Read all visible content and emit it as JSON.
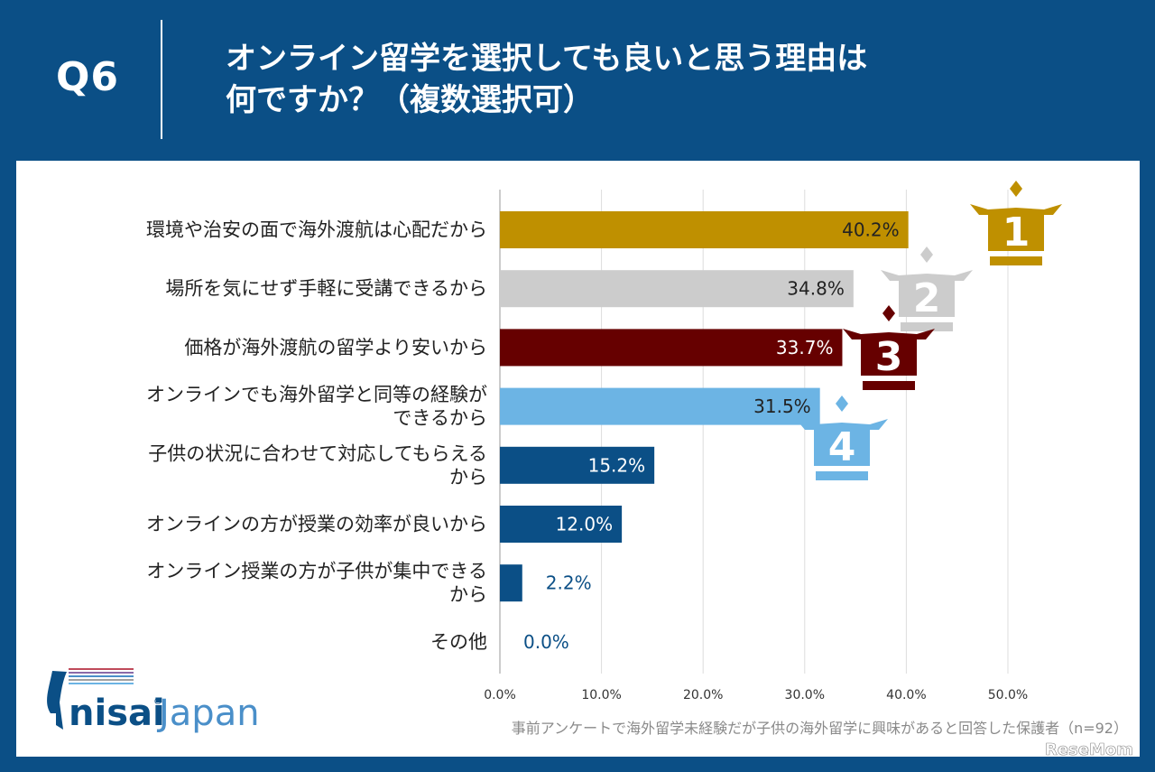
{
  "header": {
    "question_number": "Q6",
    "title_line1": "オンライン留学を選択しても良いと思う理由は",
    "title_line2": "何ですか？（複数選択可）"
  },
  "chart_data": {
    "type": "bar",
    "orientation": "horizontal",
    "categories": [
      [
        "環境や治安の面で海外渡航は心配だから"
      ],
      [
        "場所を気にせず手軽に受講できるから"
      ],
      [
        "価格が海外渡航の留学より安いから"
      ],
      [
        "オンラインでも海外留学と同等の経験が",
        "できるから"
      ],
      [
        "子供の状況に合わせて対応してもらえる",
        "から"
      ],
      [
        "オンラインの方が授業の効率が良いから"
      ],
      [
        "オンライン授業の方が子供が集中できる",
        "から"
      ],
      [
        "その他"
      ]
    ],
    "values": [
      40.2,
      34.8,
      33.7,
      31.5,
      15.2,
      12.0,
      2.2,
      0.0
    ],
    "value_labels": [
      "40.2%",
      "34.8%",
      "33.7%",
      "31.5%",
      "15.2%",
      "12.0%",
      "2.2%",
      "0.0%"
    ],
    "bar_colors": [
      "#bf9000",
      "#cccccc",
      "#660000",
      "#6cb4e4",
      "#0b4f86",
      "#0b4f86",
      "#0b4f86",
      "#0b4f86"
    ],
    "label_colors": [
      "#222222",
      "#222222",
      "#ffffff",
      "#222222",
      "#ffffff",
      "#ffffff",
      "#0b4f86",
      "#0b4f86"
    ],
    "x_ticks": [
      "0.0%",
      "10.0%",
      "20.0%",
      "30.0%",
      "40.0%",
      "50.0%"
    ],
    "xlim": [
      0,
      55
    ],
    "grid": true,
    "rank_badges": [
      {
        "rank": "1",
        "color": "#bf9000"
      },
      {
        "rank": "2",
        "color": "#cccccc"
      },
      {
        "rank": "3",
        "color": "#660000"
      },
      {
        "rank": "4",
        "color": "#6cb4e4"
      }
    ]
  },
  "footnote": "事前アンケートで海外留学未経験だが子供の海外留学に興味があると回答した保護者（n=92）",
  "brand": {
    "name_main": "nisai",
    "name_reg": "®",
    "name_sub": "Japan",
    "main_color": "#0b4f86",
    "sub_color": "#4a8fc9"
  },
  "watermark": "ReseMom"
}
